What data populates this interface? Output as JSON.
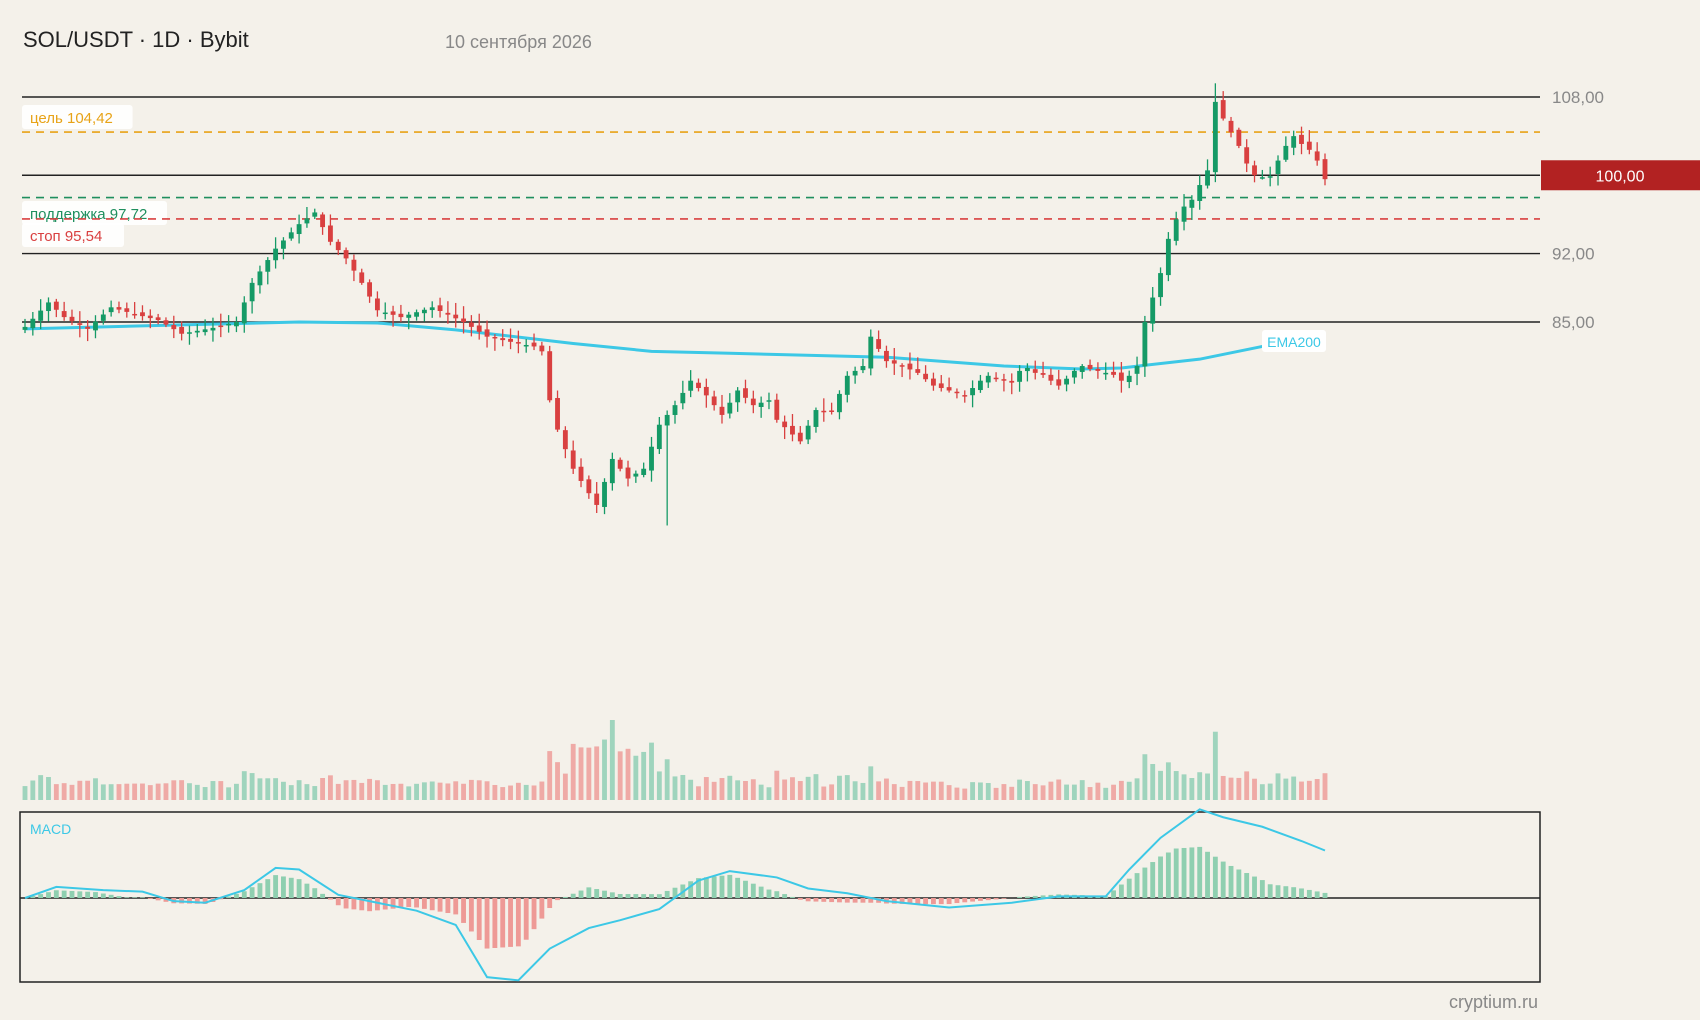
{
  "header": {
    "title": "SOL/USDT · 1D · Bybit",
    "date": "10 сентября 2026"
  },
  "footer": {
    "site": "cryptium.ru"
  },
  "colors": {
    "up": "#159a66",
    "down": "#d94040",
    "ema": "#3cc8e6",
    "target": "#e8a317",
    "support": "#1f8f5e",
    "stop": "#d94040",
    "price_tag": "#b22222",
    "bg": "#f4f1ea"
  },
  "chart_data": {
    "type": "candlestick",
    "ylim": [
      65,
      112
    ],
    "y_ticks": [
      {
        "value": 108,
        "label": "108,00"
      },
      {
        "value": 100,
        "label": "100,00"
      },
      {
        "value": 92,
        "label": "92,00"
      },
      {
        "value": 85,
        "label": "85,00"
      }
    ],
    "levels": [
      {
        "value": 104.42,
        "label": "цель 104,42",
        "style": "dashed",
        "color": "#e8a317"
      },
      {
        "value": 97.72,
        "label": "поддержка 97,72",
        "style": "dashed",
        "color": "#1f8f5e"
      },
      {
        "value": 95.54,
        "label": "стоп 95,54",
        "style": "dashed",
        "color": "#d94040"
      }
    ],
    "current_price": {
      "value": 100,
      "label": "100,00"
    },
    "ema": {
      "name": "EMA200",
      "values": [
        [
          0,
          84.3
        ],
        [
          20,
          84.7
        ],
        [
          35,
          85.0
        ],
        [
          45,
          84.9
        ],
        [
          55,
          84.2
        ],
        [
          70,
          82.8
        ],
        [
          80,
          82.0
        ],
        [
          90,
          81.8
        ],
        [
          110,
          81.4
        ],
        [
          125,
          80.5
        ],
        [
          135,
          80.2
        ],
        [
          140,
          80.3
        ],
        [
          150,
          81.2
        ],
        [
          158,
          82.5
        ],
        [
          166,
          83.6
        ]
      ]
    },
    "volume": {
      "note": "relative daily volume, colored by candle direction"
    },
    "macd": {
      "label": "MACD",
      "line": [
        [
          0,
          0
        ],
        [
          4,
          0.07
        ],
        [
          10,
          0.05
        ],
        [
          15,
          0.04
        ],
        [
          19,
          -0.02
        ],
        [
          23,
          -0.03
        ],
        [
          28,
          0.05
        ],
        [
          32,
          0.19
        ],
        [
          35,
          0.18
        ],
        [
          40,
          0.02
        ],
        [
          45,
          -0.03
        ],
        [
          50,
          -0.08
        ],
        [
          55,
          -0.17
        ],
        [
          59,
          -0.5
        ],
        [
          63,
          -0.52
        ],
        [
          67,
          -0.32
        ],
        [
          72,
          -0.19
        ],
        [
          76,
          -0.14
        ],
        [
          81,
          -0.07
        ],
        [
          86,
          0.11
        ],
        [
          90,
          0.17
        ],
        [
          96,
          0.13
        ],
        [
          100,
          0.06
        ],
        [
          105,
          0.03
        ],
        [
          110,
          -0.02
        ],
        [
          118,
          -0.06
        ],
        [
          126,
          -0.03
        ],
        [
          132,
          0.01
        ],
        [
          138,
          0.01
        ],
        [
          141,
          0.18
        ],
        [
          145,
          0.38
        ],
        [
          150,
          0.56
        ],
        [
          153,
          0.51
        ],
        [
          158,
          0.45
        ],
        [
          163,
          0.36
        ],
        [
          166,
          0.3
        ]
      ],
      "hist_range": [
        -0.6,
        0.75
      ]
    }
  }
}
